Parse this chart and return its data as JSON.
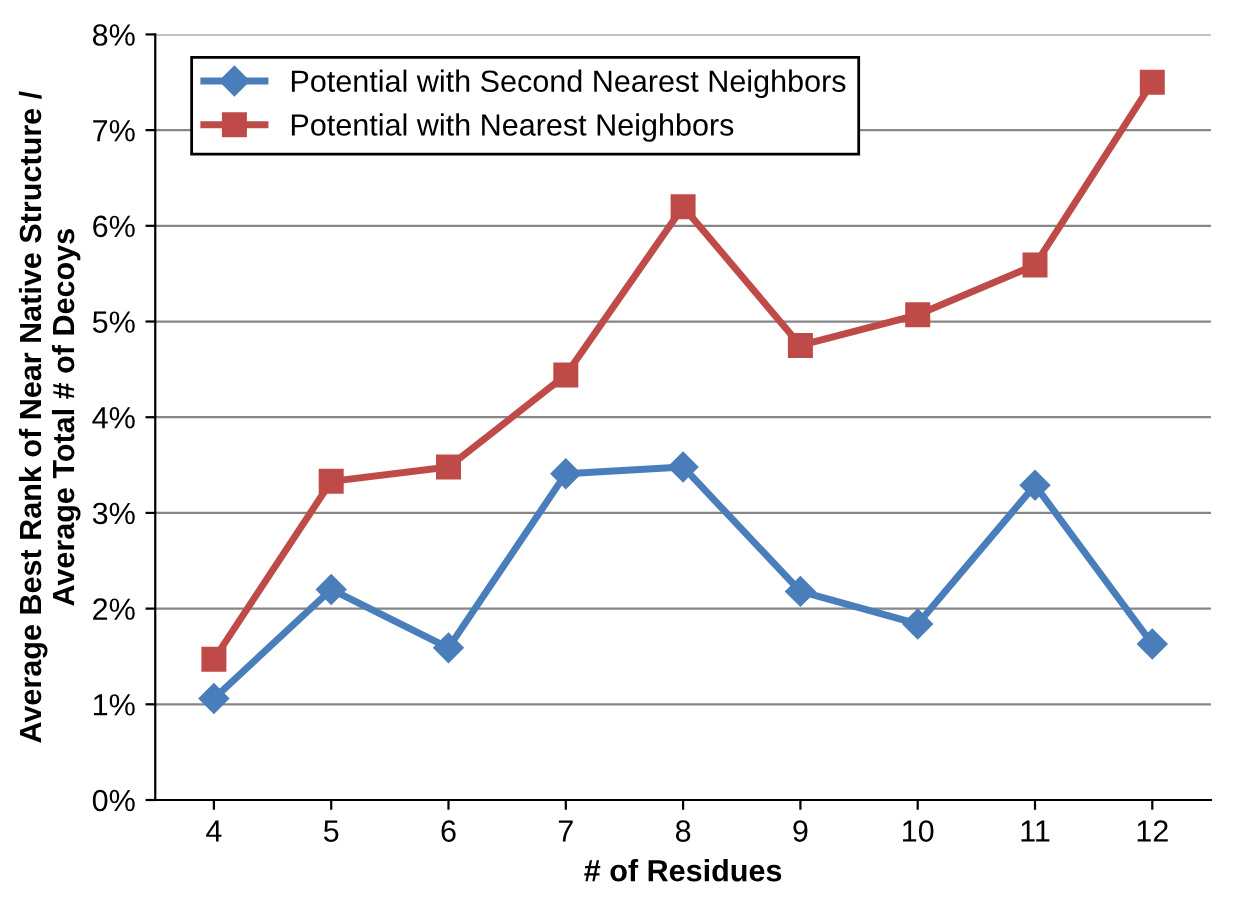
{
  "chart_data": {
    "type": "line",
    "xlabel": "# of Residues",
    "ylabel": "Average Best Rank of Near Native Structure /\nAverage Total # of Decoys",
    "categories": [
      "4",
      "5",
      "6",
      "7",
      "8",
      "9",
      "10",
      "11",
      "12"
    ],
    "series": [
      {
        "name": "Potential with Second Nearest Neighbors",
        "color": "#4a7ebb",
        "marker": "diamond",
        "values": [
          1.06,
          2.2,
          1.59,
          3.41,
          3.48,
          2.18,
          1.84,
          3.29,
          1.63
        ]
      },
      {
        "name": "Potential with Nearest Neighbors",
        "color": "#be4b48",
        "marker": "square",
        "values": [
          1.47,
          3.33,
          3.48,
          4.44,
          6.2,
          4.75,
          5.07,
          5.59,
          7.5
        ]
      }
    ],
    "ylim": [
      0,
      8
    ],
    "yticks": [
      {
        "value": 0,
        "label": "0%"
      },
      {
        "value": 1,
        "label": "1%"
      },
      {
        "value": 2,
        "label": "2%"
      },
      {
        "value": 3,
        "label": "3%"
      },
      {
        "value": 4,
        "label": "4%"
      },
      {
        "value": 5,
        "label": "5%"
      },
      {
        "value": 6,
        "label": "6%"
      },
      {
        "value": 7,
        "label": "7%"
      },
      {
        "value": 8,
        "label": "8%"
      }
    ],
    "grid": "y",
    "legend": "top left",
    "line_style": "solid"
  }
}
